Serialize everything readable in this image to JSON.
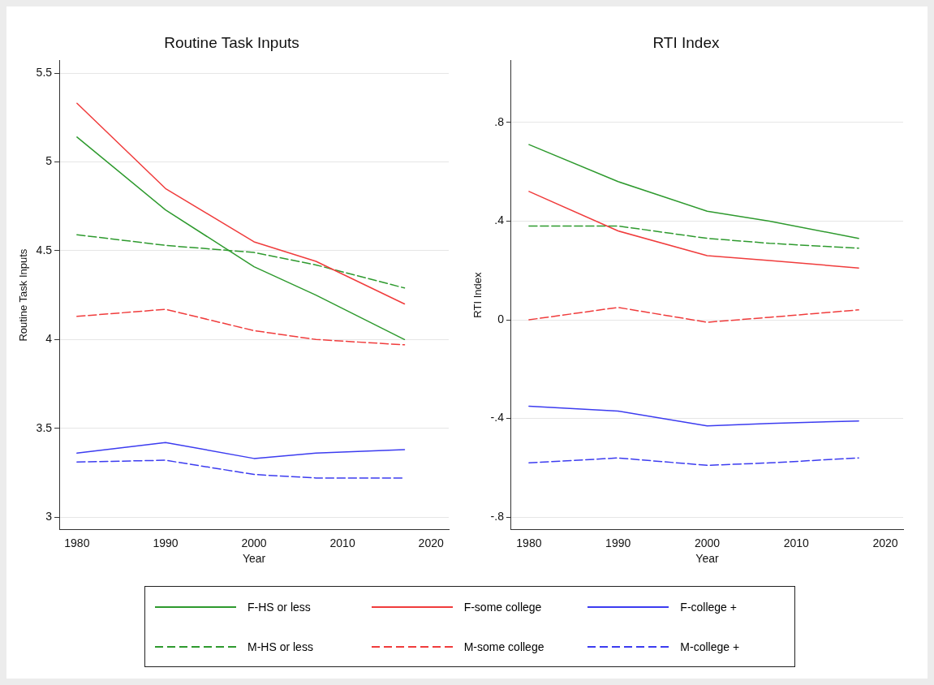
{
  "chart_data": [
    {
      "type": "line",
      "title": "Routine Task Inputs",
      "xlabel": "Year",
      "ylabel": "Routine Task Inputs",
      "x": [
        1980,
        1990,
        2000,
        2007,
        2017
      ],
      "xlim": [
        1978,
        2022
      ],
      "xticks": [
        1980,
        1990,
        2000,
        2010,
        2020
      ],
      "ylim": [
        2.93,
        5.57
      ],
      "yticks": [
        3,
        3.5,
        4,
        4.5,
        5,
        5.5
      ],
      "grid": "y",
      "legend": "bottom",
      "marker": "none",
      "series": [
        {
          "name": "F-HS or less",
          "color": "#2e9a2e",
          "line_style": "solid",
          "values": [
            5.14,
            4.73,
            4.41,
            4.25,
            4.0
          ]
        },
        {
          "name": "F-some college",
          "color": "#f03c3c",
          "line_style": "solid",
          "values": [
            5.33,
            4.85,
            4.55,
            4.44,
            4.2
          ]
        },
        {
          "name": "F-college +",
          "color": "#3c3cf0",
          "line_style": "solid",
          "values": [
            3.36,
            3.42,
            3.33,
            3.36,
            3.38
          ]
        },
        {
          "name": "M-HS or less",
          "color": "#2e9a2e",
          "line_style": "dashed",
          "values": [
            4.59,
            4.53,
            4.49,
            4.42,
            4.29
          ]
        },
        {
          "name": "M-some college",
          "color": "#f03c3c",
          "line_style": "dashed",
          "values": [
            4.13,
            4.17,
            4.05,
            4.0,
            3.97
          ]
        },
        {
          "name": "M-college +",
          "color": "#3c3cf0",
          "line_style": "dashed",
          "values": [
            3.31,
            3.32,
            3.24,
            3.22,
            3.22
          ]
        }
      ]
    },
    {
      "type": "line",
      "title": "RTI Index",
      "xlabel": "Year",
      "ylabel": "RTI Index",
      "x": [
        1980,
        1990,
        2000,
        2007,
        2017
      ],
      "xlim": [
        1978,
        2022
      ],
      "xticks": [
        1980,
        1990,
        2000,
        2010,
        2020
      ],
      "ylim": [
        -0.85,
        1.05
      ],
      "yticks": [
        {
          "value": -0.8,
          "label": "-.8"
        },
        {
          "value": -0.4,
          "label": "-.4"
        },
        0,
        {
          "value": 0.4,
          "label": ".4"
        },
        {
          "value": 0.8,
          "label": ".8"
        }
      ],
      "grid": "y",
      "marker": "none",
      "series": [
        {
          "color": "#2e9a2e",
          "line_style": "solid",
          "values": [
            0.71,
            0.56,
            0.44,
            0.4,
            0.33
          ]
        },
        {
          "color": "#f03c3c",
          "line_style": "solid",
          "values": [
            0.52,
            0.36,
            0.26,
            0.24,
            0.21
          ]
        },
        {
          "color": "#3c3cf0",
          "line_style": "solid",
          "values": [
            -0.35,
            -0.37,
            -0.43,
            -0.42,
            -0.41
          ]
        },
        {
          "color": "#2e9a2e",
          "line_style": "dashed",
          "values": [
            0.38,
            0.38,
            0.33,
            0.31,
            0.29
          ]
        },
        {
          "color": "#f03c3c",
          "line_style": "dashed",
          "values": [
            0.0,
            0.05,
            -0.01,
            0.01,
            0.04
          ]
        },
        {
          "color": "#3c3cf0",
          "line_style": "dashed",
          "values": [
            -0.58,
            -0.56,
            -0.59,
            -0.58,
            -0.56
          ]
        }
      ]
    }
  ]
}
